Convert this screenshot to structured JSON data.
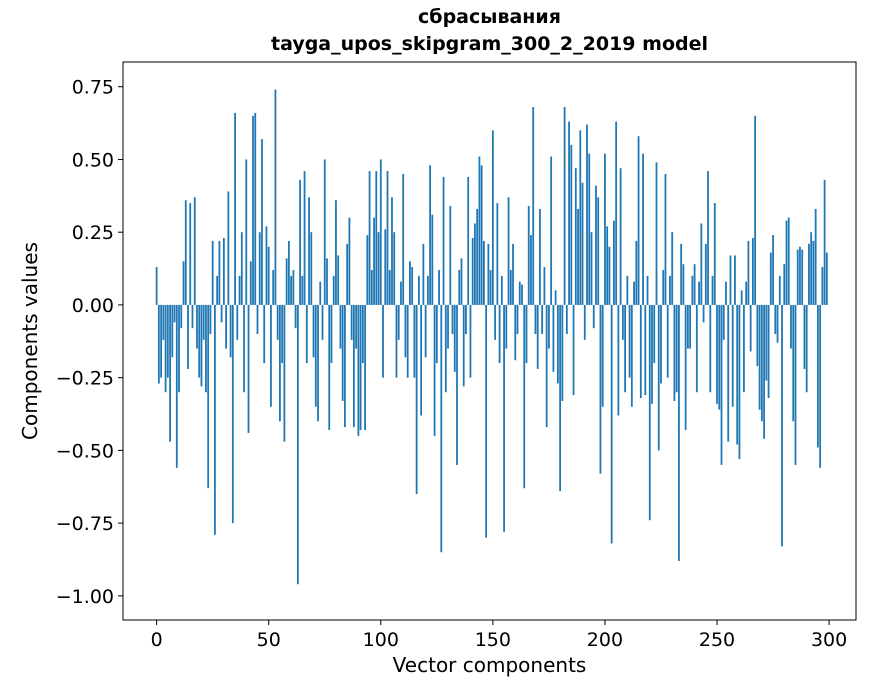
{
  "chart_data": {
    "type": "bar",
    "title": "сбрасывания",
    "subtitle": "tayga_upos_skipgram_300_2_2019 model",
    "xlabel": "Vector components",
    "ylabel": "Components values",
    "bar_color": "#1f77b4",
    "grid": false,
    "legend": null,
    "xlim": [
      -15,
      312
    ],
    "ylim": [
      -1.083,
      0.835
    ],
    "xticks": [
      0,
      50,
      100,
      150,
      200,
      250,
      300
    ],
    "xtick_labels": [
      "0",
      "50",
      "100",
      "150",
      "200",
      "250",
      "300"
    ],
    "yticks": [
      0.75,
      0.5,
      0.25,
      0,
      -0.25,
      -0.5,
      -0.75,
      -1
    ],
    "ytick_labels": [
      "0.75",
      "0.50",
      "0.25",
      "0.00",
      "−0.25",
      "−0.50",
      "−0.75",
      "−1.00"
    ],
    "x_description": "vector component index 0..299",
    "values": [
      0.13,
      -0.27,
      -0.25,
      -0.12,
      -0.3,
      -0.25,
      -0.47,
      -0.18,
      -0.06,
      -0.56,
      -0.3,
      -0.08,
      0.15,
      0.36,
      -0.22,
      0.35,
      -0.08,
      0.37,
      -0.15,
      -0.25,
      -0.28,
      -0.12,
      -0.3,
      -0.63,
      -0.1,
      0.22,
      -0.79,
      0.1,
      0.22,
      -0.06,
      0.23,
      -0.15,
      0.39,
      -0.18,
      -0.75,
      0.66,
      -0.12,
      0.1,
      0.25,
      -0.3,
      0.5,
      -0.44,
      0.15,
      0.65,
      0.66,
      -0.1,
      0.25,
      0.57,
      -0.2,
      0.27,
      0.2,
      -0.35,
      0.12,
      0.74,
      -0.12,
      -0.4,
      -0.2,
      -0.47,
      0.16,
      0.22,
      0.1,
      0.12,
      -0.08,
      -0.96,
      0.43,
      0.1,
      0.46,
      -0.2,
      0.37,
      0.25,
      -0.18,
      -0.35,
      -0.4,
      0.08,
      -0.12,
      0.5,
      0.16,
      -0.43,
      -0.2,
      0.1,
      0.36,
      0.17,
      -0.15,
      -0.33,
      -0.42,
      0.21,
      0.3,
      -0.12,
      -0.42,
      -0.15,
      -0.45,
      -0.43,
      -0.2,
      -0.43,
      0.24,
      0.46,
      0.12,
      0.3,
      0.46,
      0.25,
      0.5,
      -0.25,
      0.26,
      0.46,
      0.12,
      0.37,
      0.25,
      -0.25,
      -0.12,
      0.08,
      0.45,
      -0.18,
      -0.25,
      0.15,
      0.13,
      -0.25,
      -0.65,
      0.1,
      -0.38,
      0.21,
      -0.18,
      0.1,
      0.48,
      0.31,
      -0.45,
      -0.2,
      0.12,
      -0.85,
      0.44,
      -0.3,
      -0.15,
      0.34,
      -0.1,
      -0.23,
      -0.55,
      0.12,
      0.16,
      -0.28,
      -0.1,
      0.44,
      -0.25,
      0.23,
      0.28,
      0.33,
      0.51,
      0.48,
      0.22,
      -0.8,
      0.21,
      0.12,
      0.6,
      -0.12,
      0.35,
      -0.2,
      0.1,
      -0.78,
      -0.15,
      0.37,
      0.12,
      0.21,
      -0.19,
      -0.1,
      0.08,
      0.07,
      -0.63,
      -0.2,
      0.34,
      0.24,
      0.68,
      -0.1,
      -0.22,
      0.33,
      -0.1,
      0.13,
      -0.42,
      -0.15,
      0.51,
      -0.23,
      0.05,
      -0.27,
      -0.64,
      -0.33,
      0.68,
      -0.1,
      0.63,
      0.55,
      -0.31,
      0.47,
      0.33,
      0.6,
      0.42,
      -0.12,
      0.62,
      0.52,
      0.25,
      -0.08,
      0.41,
      0.37,
      -0.58,
      -0.35,
      0.52,
      0.27,
      0.2,
      -0.82,
      0.29,
      0.63,
      -0.38,
      0.47,
      -0.12,
      -0.3,
      0.1,
      -0.25,
      -0.35,
      0.08,
      0.22,
      0.58,
      -0.32,
      0.52,
      -0.31,
      0.1,
      -0.74,
      -0.34,
      -0.2,
      0.49,
      -0.5,
      -0.27,
      0.12,
      0.45,
      -0.25,
      0.1,
      0.25,
      -0.33,
      -0.3,
      -0.88,
      0.21,
      0.14,
      -0.43,
      -0.15,
      -0.15,
      0.1,
      0.14,
      -0.3,
      0.08,
      0.28,
      -0.06,
      0.21,
      0.46,
      -0.3,
      0.1,
      0.35,
      -0.34,
      -0.36,
      -0.55,
      -0.12,
      0.08,
      -0.47,
      0.17,
      -0.35,
      0.17,
      -0.48,
      -0.53,
      0.05,
      -0.3,
      0.08,
      0.22,
      -0.16,
      0.23,
      0.65,
      -0.21,
      -0.36,
      -0.4,
      -0.46,
      -0.26,
      -0.32,
      0.18,
      0.24,
      -0.1,
      -0.13,
      0.1,
      -0.83,
      0.14,
      0.29,
      0.3,
      -0.15,
      -0.4,
      -0.55,
      0.19,
      0.2,
      0.19,
      -0.22,
      -0.3,
      0.21,
      0.25,
      0.22,
      0.33,
      -0.49,
      -0.56,
      0.13,
      0.43,
      0.18
    ]
  }
}
